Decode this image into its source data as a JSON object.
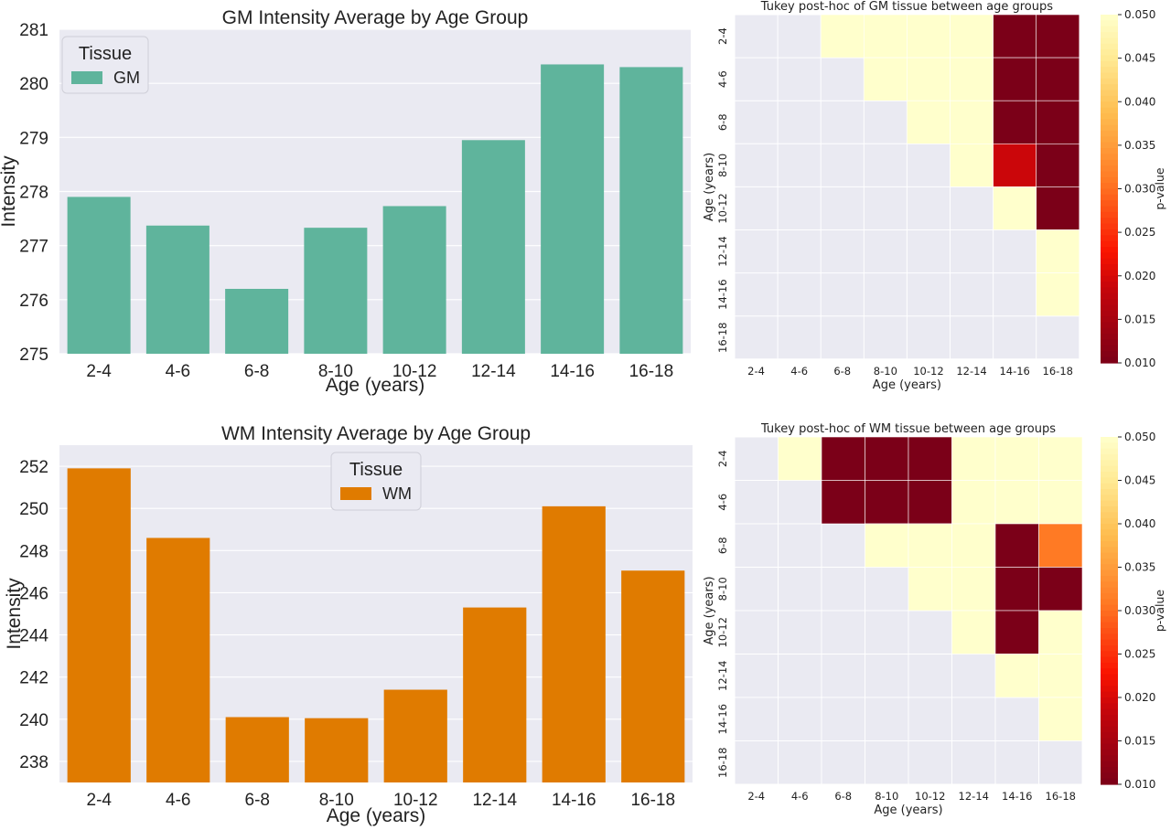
{
  "chart_data": [
    {
      "type": "bar",
      "title": "GM Intensity Average by Age Group",
      "xlabel": "Age (years)",
      "ylabel": "Intensity",
      "categories": [
        "2-4",
        "4-6",
        "6-8",
        "8-10",
        "10-12",
        "12-14",
        "14-16",
        "16-18"
      ],
      "series": [
        {
          "name": "GM",
          "values": [
            277.9,
            277.37,
            276.2,
            277.33,
            277.73,
            278.95,
            280.35,
            280.3
          ]
        }
      ],
      "ylim": [
        275,
        281
      ],
      "yticks": [
        275,
        276,
        277,
        278,
        279,
        280,
        281
      ],
      "legend": {
        "title": "Tissue",
        "position": "top-left"
      },
      "grid": true,
      "color": "#5fb49c",
      "background": "#eaeaf2"
    },
    {
      "type": "heatmap",
      "title": "Tukey post-hoc of GM tissue between age groups",
      "xlabel": "Age (years)",
      "ylabel": "Age (years)",
      "x_categories": [
        "2-4",
        "4-6",
        "6-8",
        "8-10",
        "10-12",
        "12-14",
        "14-16",
        "16-18"
      ],
      "y_categories": [
        "2-4",
        "4-6",
        "6-8",
        "8-10",
        "10-12",
        "12-14",
        "14-16",
        "16-18"
      ],
      "values": [
        [
          null,
          null,
          0.05,
          0.05,
          0.05,
          0.05,
          0.01,
          0.01
        ],
        [
          null,
          null,
          null,
          0.05,
          0.05,
          0.05,
          0.01,
          0.01
        ],
        [
          null,
          null,
          null,
          null,
          0.05,
          0.05,
          0.01,
          0.01
        ],
        [
          null,
          null,
          null,
          null,
          null,
          0.05,
          0.019,
          0.01
        ],
        [
          null,
          null,
          null,
          null,
          null,
          null,
          0.05,
          0.01
        ],
        [
          null,
          null,
          null,
          null,
          null,
          null,
          null,
          0.05
        ],
        [
          null,
          null,
          null,
          null,
          null,
          null,
          null,
          0.05
        ],
        [
          null,
          null,
          null,
          null,
          null,
          null,
          null,
          null
        ]
      ],
      "colorbar": {
        "label": "p-value",
        "range": [
          0.01,
          0.05
        ],
        "ticks": [
          "0.010",
          "0.015",
          "0.020",
          "0.025",
          "0.030",
          "0.035",
          "0.040",
          "0.045",
          "0.050"
        ]
      },
      "colormap": "YlOrRd_r"
    },
    {
      "type": "bar",
      "title": "WM Intensity Average by Age Group",
      "xlabel": "Age (years)",
      "ylabel": "Intensity",
      "categories": [
        "2-4",
        "4-6",
        "6-8",
        "8-10",
        "10-12",
        "12-14",
        "14-16",
        "16-18"
      ],
      "series": [
        {
          "name": "WM",
          "values": [
            251.9,
            248.6,
            240.1,
            240.05,
            241.4,
            245.3,
            250.1,
            247.05
          ]
        }
      ],
      "ylim": [
        237,
        253
      ],
      "yticks": [
        238,
        240,
        242,
        244,
        246,
        248,
        250,
        252
      ],
      "legend": {
        "title": "Tissue",
        "position": "top-center"
      },
      "grid": true,
      "color": "#e07b00",
      "background": "#eaeaf2"
    },
    {
      "type": "heatmap",
      "title": "Tukey post-hoc of WM tissue between age groups",
      "xlabel": "Age (years)",
      "ylabel": "Age (years)",
      "x_categories": [
        "2-4",
        "4-6",
        "6-8",
        "8-10",
        "10-12",
        "12-14",
        "14-16",
        "16-18"
      ],
      "y_categories": [
        "2-4",
        "4-6",
        "6-8",
        "8-10",
        "10-12",
        "12-14",
        "14-16",
        "16-18"
      ],
      "values": [
        [
          null,
          0.05,
          0.01,
          0.01,
          0.01,
          0.05,
          0.05,
          0.05
        ],
        [
          null,
          null,
          0.01,
          0.01,
          0.01,
          0.05,
          0.05,
          0.05
        ],
        [
          null,
          null,
          null,
          0.05,
          0.05,
          0.05,
          0.01,
          0.031
        ],
        [
          null,
          null,
          null,
          null,
          0.05,
          0.05,
          0.01,
          0.01
        ],
        [
          null,
          null,
          null,
          null,
          null,
          0.05,
          0.01,
          0.05
        ],
        [
          null,
          null,
          null,
          null,
          null,
          null,
          0.05,
          0.05
        ],
        [
          null,
          null,
          null,
          null,
          null,
          null,
          null,
          0.05
        ],
        [
          null,
          null,
          null,
          null,
          null,
          null,
          null,
          null
        ]
      ],
      "colorbar": {
        "label": "p-value",
        "range": [
          0.01,
          0.05
        ],
        "ticks": [
          "0.010",
          "0.015",
          "0.020",
          "0.025",
          "0.030",
          "0.035",
          "0.040",
          "0.045",
          "0.050"
        ]
      },
      "colormap": "YlOrRd_r"
    }
  ]
}
